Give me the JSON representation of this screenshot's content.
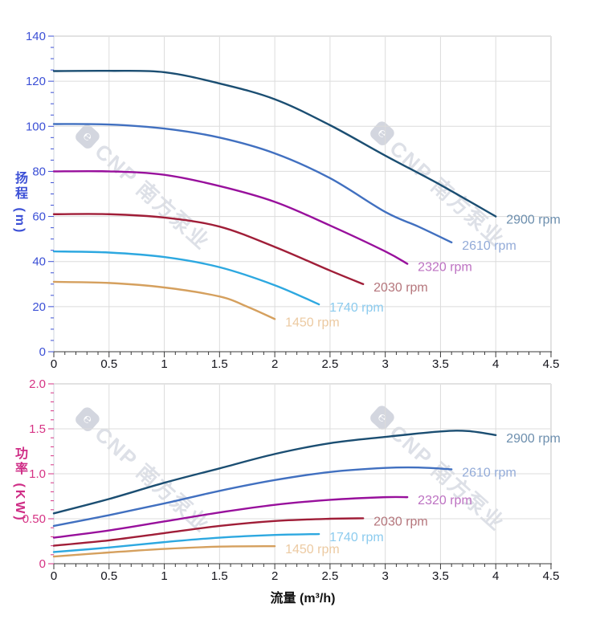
{
  "watermark": {
    "logo_glyph": "℮",
    "text": "CNP 南方泵业"
  },
  "x_axis": {
    "title": "流量 (m³/h)",
    "min": 0,
    "max": 4.5,
    "major_step": 0.5,
    "minor_step": 0.1,
    "tick_labels": [
      "0",
      "0.5",
      "1",
      "1.5",
      "2",
      "2.5",
      "3",
      "3.5",
      "4",
      "4.5"
    ],
    "text_color": "#14141c",
    "axis_line_color": "#3a3a3a"
  },
  "chart_data": [
    {
      "type": "line",
      "title": "",
      "ylabel": "扬程 (m)",
      "xlabel": "流量 (m³/h)",
      "xlim": [
        0,
        4.5
      ],
      "ylim": [
        0,
        140
      ],
      "y_major_step": 20,
      "y_minor_step": 5,
      "y_tick_labels": [
        "0",
        "20",
        "40",
        "60",
        "80",
        "100",
        "120",
        "140"
      ],
      "axis_color": "#3c50d6",
      "grid": true,
      "legend_position": "labels-at-curve-ends",
      "series": [
        {
          "name": "2900 rpm",
          "color": "#1b4e72",
          "label_color": "#6d8fae",
          "x": [
            0,
            0.5,
            1,
            1.5,
            2,
            2.5,
            3,
            3.5,
            4
          ],
          "y": [
            124.5,
            124.6,
            124,
            119,
            112,
            100.5,
            87,
            74,
            60
          ]
        },
        {
          "name": "2610 rpm",
          "color": "#4170c0",
          "label_color": "#93abd8",
          "x": [
            0,
            0.5,
            1,
            1.5,
            2,
            2.5,
            3,
            3.3,
            3.6
          ],
          "y": [
            101,
            100.8,
            99,
            95,
            88,
            77,
            62,
            55.5,
            48.5
          ]
        },
        {
          "name": "2320 rpm",
          "color": "#98109c",
          "label_color": "#bd72c2",
          "x": [
            0,
            0.5,
            1,
            1.5,
            2,
            2.5,
            3,
            3.2
          ],
          "y": [
            80,
            80,
            78.5,
            73.5,
            66.5,
            56,
            44.5,
            39
          ]
        },
        {
          "name": "2030 rpm",
          "color": "#a01e38",
          "label_color": "#b5767c",
          "x": [
            0,
            0.5,
            1,
            1.5,
            2,
            2.5,
            2.8
          ],
          "y": [
            61,
            61,
            59.5,
            55.5,
            46.5,
            36,
            30
          ]
        },
        {
          "name": "1740 rpm",
          "color": "#2da8e0",
          "label_color": "#8ccbee",
          "x": [
            0,
            0.5,
            1,
            1.5,
            2,
            2.4
          ],
          "y": [
            44.5,
            44,
            42,
            37.5,
            29.5,
            21
          ]
        },
        {
          "name": "1450 rpm",
          "color": "#d5a05e",
          "label_color": "#eccaa2",
          "x": [
            0,
            0.5,
            1,
            1.5,
            1.75,
            2
          ],
          "y": [
            31,
            30.5,
            28.5,
            24.5,
            20,
            14.5
          ]
        }
      ]
    },
    {
      "type": "line",
      "title": "",
      "ylabel": "功率 (KW)",
      "xlabel": "流量 (m³/h)",
      "xlim": [
        0,
        4.5
      ],
      "ylim": [
        0,
        2.0
      ],
      "y_major_step": 0.5,
      "y_minor_step": 0.1,
      "y_tick_labels": [
        "0",
        "0.50",
        "1.0",
        "1.5",
        "2.0"
      ],
      "axis_color": "#d63384",
      "grid": true,
      "legend_position": "labels-at-curve-ends",
      "series": [
        {
          "name": "2900 rpm",
          "color": "#1b4e72",
          "label_color": "#6d8fae",
          "x": [
            0,
            0.5,
            1,
            1.5,
            2,
            2.5,
            3,
            3.5,
            3.75,
            4
          ],
          "y": [
            0.56,
            0.72,
            0.9,
            1.06,
            1.22,
            1.34,
            1.41,
            1.47,
            1.475,
            1.43
          ]
        },
        {
          "name": "2610 rpm",
          "color": "#4170c0",
          "label_color": "#93abd8",
          "x": [
            0,
            0.5,
            1,
            1.5,
            2,
            2.5,
            3,
            3.3,
            3.6
          ],
          "y": [
            0.42,
            0.54,
            0.67,
            0.81,
            0.93,
            1.02,
            1.065,
            1.07,
            1.05
          ]
        },
        {
          "name": "2320 rpm",
          "color": "#98109c",
          "label_color": "#bd72c2",
          "x": [
            0,
            0.5,
            1,
            1.5,
            2,
            2.5,
            3,
            3.2
          ],
          "y": [
            0.29,
            0.37,
            0.47,
            0.57,
            0.655,
            0.71,
            0.74,
            0.74
          ]
        },
        {
          "name": "2030 rpm",
          "color": "#a01e38",
          "label_color": "#b5767c",
          "x": [
            0,
            0.5,
            1,
            1.5,
            2,
            2.5,
            2.8
          ],
          "y": [
            0.2,
            0.26,
            0.34,
            0.42,
            0.475,
            0.5,
            0.505
          ]
        },
        {
          "name": "1740 rpm",
          "color": "#2da8e0",
          "label_color": "#8ccbee",
          "x": [
            0,
            0.5,
            1,
            1.5,
            2,
            2.4
          ],
          "y": [
            0.13,
            0.18,
            0.24,
            0.29,
            0.32,
            0.33
          ]
        },
        {
          "name": "1450 rpm",
          "color": "#d5a05e",
          "label_color": "#eccaa2",
          "x": [
            0,
            0.5,
            1,
            1.5,
            2
          ],
          "y": [
            0.08,
            0.125,
            0.165,
            0.19,
            0.195
          ]
        }
      ]
    }
  ]
}
